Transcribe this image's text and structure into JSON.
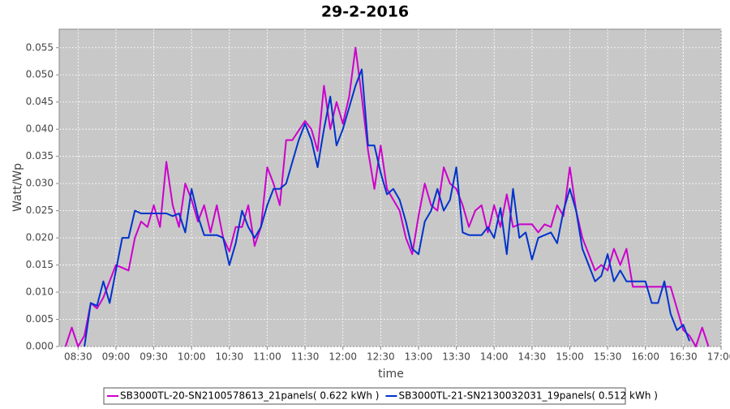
{
  "chart_data": {
    "type": "line",
    "title": "29-2-2016",
    "x_label": "time",
    "y_label": "Watt/Wp",
    "xlim": [
      495,
      1020
    ],
    "ylim": [
      0,
      0.0584
    ],
    "xticks": [
      {
        "value": 510,
        "label": "08:30"
      },
      {
        "value": 540,
        "label": "09:00"
      },
      {
        "value": 570,
        "label": "09:30"
      },
      {
        "value": 600,
        "label": "10:00"
      },
      {
        "value": 630,
        "label": "10:30"
      },
      {
        "value": 660,
        "label": "11:00"
      },
      {
        "value": 690,
        "label": "11:30"
      },
      {
        "value": 720,
        "label": "12:00"
      },
      {
        "value": 750,
        "label": "12:30"
      },
      {
        "value": 780,
        "label": "13:00"
      },
      {
        "value": 810,
        "label": "13:30"
      },
      {
        "value": 840,
        "label": "14:00"
      },
      {
        "value": 870,
        "label": "14:30"
      },
      {
        "value": 900,
        "label": "15:00"
      },
      {
        "value": 930,
        "label": "15:30"
      },
      {
        "value": 960,
        "label": "16:00"
      },
      {
        "value": 990,
        "label": "16:30"
      },
      {
        "value": 1020,
        "label": "17:00"
      }
    ],
    "yticks": [
      {
        "value": 0,
        "label": "0.000"
      },
      {
        "value": 0.005,
        "label": "0.005"
      },
      {
        "value": 0.01,
        "label": "0.010"
      },
      {
        "value": 0.015,
        "label": "0.015"
      },
      {
        "value": 0.02,
        "label": "0.020"
      },
      {
        "value": 0.025,
        "label": "0.025"
      },
      {
        "value": 0.03,
        "label": "0.030"
      },
      {
        "value": 0.035,
        "label": "0.035"
      },
      {
        "value": 0.04,
        "label": "0.040"
      },
      {
        "value": 0.045,
        "label": "0.045"
      },
      {
        "value": 0.05,
        "label": "0.050"
      },
      {
        "value": 0.055,
        "label": "0.055"
      }
    ],
    "grid": true,
    "series": [
      {
        "name": "SB3000TL-20-SN2100578613_21panels( 0.622 kWh )",
        "color": "#cc00cc",
        "x": [
          500,
          505,
          510,
          515,
          520,
          525,
          530,
          540,
          550,
          555,
          560,
          565,
          570,
          575,
          580,
          585,
          590,
          595,
          600,
          605,
          610,
          615,
          620,
          625,
          630,
          635,
          640,
          645,
          650,
          655,
          660,
          665,
          670,
          675,
          680,
          690,
          695,
          700,
          705,
          710,
          715,
          720,
          725,
          730,
          735,
          740,
          745,
          750,
          755,
          760,
          765,
          770,
          775,
          780,
          785,
          790,
          795,
          800,
          805,
          810,
          815,
          820,
          825,
          830,
          835,
          840,
          845,
          850,
          855,
          860,
          870,
          875,
          880,
          885,
          890,
          895,
          900,
          905,
          910,
          915,
          920,
          925,
          930,
          935,
          940,
          945,
          950,
          955,
          960,
          970,
          980,
          985,
          990,
          995,
          1000,
          1005,
          1010
        ],
        "values": [
          0,
          0.0035,
          0,
          0.002,
          0.008,
          0.007,
          0.009,
          0.015,
          0.014,
          0.02,
          0.023,
          0.022,
          0.026,
          0.022,
          0.034,
          0.026,
          0.022,
          0.03,
          0.027,
          0.023,
          0.026,
          0.021,
          0.026,
          0.02,
          0.0175,
          0.022,
          0.022,
          0.026,
          0.0185,
          0.022,
          0.033,
          0.03,
          0.026,
          0.038,
          0.038,
          0.0415,
          0.04,
          0.036,
          0.048,
          0.04,
          0.045,
          0.041,
          0.046,
          0.055,
          0.046,
          0.036,
          0.029,
          0.037,
          0.029,
          0.027,
          0.025,
          0.02,
          0.017,
          0.024,
          0.03,
          0.026,
          0.025,
          0.033,
          0.03,
          0.029,
          0.026,
          0.022,
          0.025,
          0.026,
          0.021,
          0.026,
          0.022,
          0.028,
          0.022,
          0.0225,
          0.0225,
          0.021,
          0.0225,
          0.022,
          0.026,
          0.024,
          0.033,
          0.025,
          0.02,
          0.017,
          0.014,
          0.015,
          0.014,
          0.018,
          0.015,
          0.018,
          0.011,
          0.011,
          0.011,
          0.011,
          0.011,
          0.007,
          0.003,
          0.002,
          0,
          0.0035,
          0
        ]
      },
      {
        "name": "SB3000TL-21-SN2130032031_19panels( 0.512 kWh )",
        "color": "#0033cc",
        "x": [
          515,
          520,
          525,
          530,
          535,
          540,
          545,
          550,
          555,
          560,
          570,
          580,
          585,
          590,
          595,
          600,
          605,
          610,
          620,
          625,
          630,
          635,
          640,
          645,
          650,
          655,
          660,
          665,
          670,
          675,
          680,
          685,
          690,
          695,
          700,
          705,
          710,
          715,
          720,
          725,
          730,
          735,
          740,
          745,
          750,
          755,
          760,
          765,
          770,
          775,
          780,
          785,
          790,
          795,
          800,
          805,
          810,
          815,
          820,
          830,
          835,
          840,
          845,
          850,
          855,
          860,
          865,
          870,
          875,
          885,
          890,
          895,
          900,
          905,
          910,
          915,
          920,
          925,
          930,
          935,
          940,
          945,
          950,
          960,
          965,
          970,
          975,
          980,
          985,
          990,
          995
        ],
        "values": [
          0,
          0.008,
          0.0075,
          0.012,
          0.008,
          0.014,
          0.02,
          0.02,
          0.025,
          0.0245,
          0.0245,
          0.0245,
          0.024,
          0.0245,
          0.021,
          0.029,
          0.024,
          0.0205,
          0.0205,
          0.02,
          0.015,
          0.019,
          0.025,
          0.022,
          0.02,
          0.022,
          0.026,
          0.029,
          0.029,
          0.03,
          0.034,
          0.038,
          0.041,
          0.038,
          0.033,
          0.04,
          0.046,
          0.037,
          0.04,
          0.044,
          0.048,
          0.051,
          0.037,
          0.037,
          0.032,
          0.028,
          0.029,
          0.027,
          0.023,
          0.018,
          0.017,
          0.023,
          0.025,
          0.029,
          0.025,
          0.027,
          0.033,
          0.021,
          0.0205,
          0.0205,
          0.022,
          0.02,
          0.0255,
          0.017,
          0.029,
          0.02,
          0.021,
          0.016,
          0.02,
          0.021,
          0.019,
          0.025,
          0.029,
          0.025,
          0.018,
          0.015,
          0.012,
          0.013,
          0.017,
          0.012,
          0.014,
          0.012,
          0.012,
          0.012,
          0.008,
          0.008,
          0.012,
          0.006,
          0.003,
          0.004,
          0.001
        ]
      }
    ]
  }
}
